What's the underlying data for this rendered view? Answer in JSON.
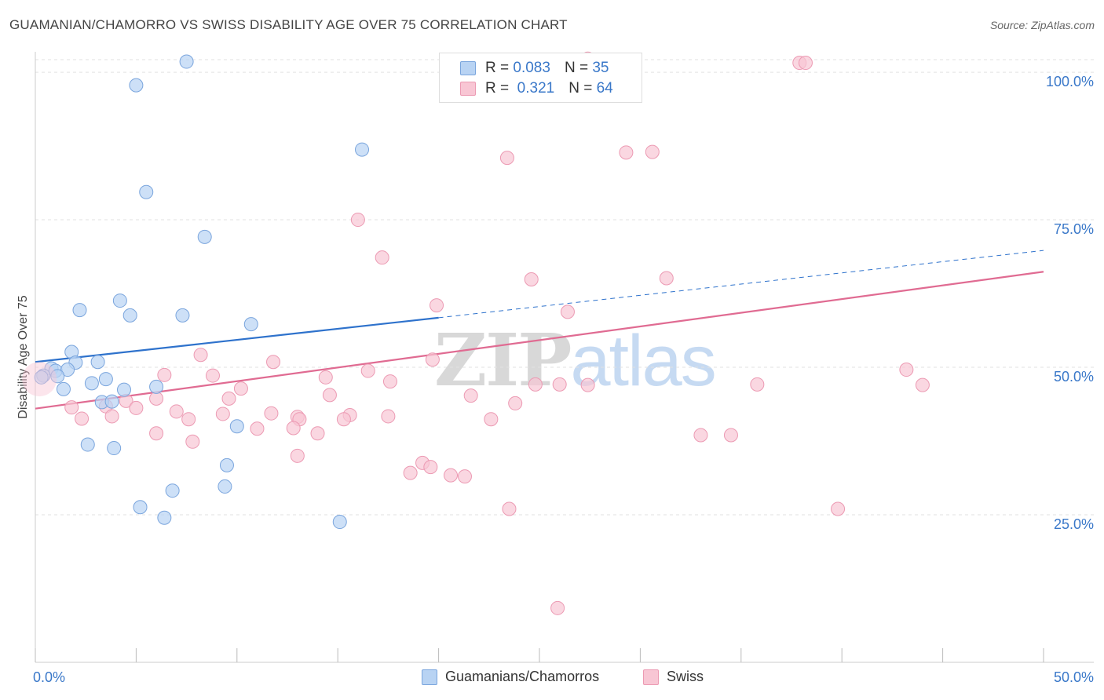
{
  "title": "GUAMANIAN/CHAMORRO VS SWISS DISABILITY AGE OVER 75 CORRELATION CHART",
  "source": "Source: ZipAtlas.com",
  "watermark": {
    "zip": "ZIP",
    "atlas": "atlas"
  },
  "legend_top": [
    {
      "r_label": "R =",
      "r_value": "0.083",
      "n_label": "N =",
      "n_value": "35"
    },
    {
      "r_label": "R =",
      "r_value": "0.321",
      "n_label": "N =",
      "n_value": "64"
    }
  ],
  "legend_bottom": [
    {
      "label": "Guamanians/Chamorros"
    },
    {
      "label": "Swiss"
    }
  ],
  "colors": {
    "blue_fill": "#b8d3f3",
    "blue_stroke": "#7aa5dd",
    "blue_line": "#2e72cc",
    "pink_fill": "#f8c6d4",
    "pink_stroke": "#ec9ab3",
    "pink_line": "#e06b92",
    "tick_label": "#3a78c9",
    "grid": "#e2e2e2"
  },
  "chart_data": {
    "type": "scatter",
    "title": "GUAMANIAN/CHAMORRO VS SWISS DISABILITY AGE OVER 75 CORRELATION CHART",
    "xlabel": "",
    "ylabel": "Disability Age Over 75",
    "xlim": [
      0,
      50
    ],
    "ylim": [
      0,
      104
    ],
    "x_tick_labels": [
      {
        "value": 0,
        "label": "0.0%"
      },
      {
        "value": 50,
        "label": "50.0%"
      }
    ],
    "y_tick_labels": [
      {
        "value": 25,
        "label": "25.0%"
      },
      {
        "value": 50,
        "label": "50.0%"
      },
      {
        "value": 75,
        "label": "75.0%"
      },
      {
        "value": 100,
        "label": "100.0%"
      }
    ],
    "x_minor_ticks": [
      0,
      5,
      10,
      15,
      20,
      25,
      30,
      35,
      40,
      45,
      50
    ],
    "grid": true,
    "legend_position": "top-center",
    "series": [
      {
        "name": "Guamanians/Chamorros",
        "color": "#b8d3f3",
        "trend": {
          "x": [
            0,
            20
          ],
          "y": [
            50.9,
            58.4
          ],
          "extended_to": [
            50,
            69.8
          ]
        },
        "points": [
          [
            7.5,
            101.8
          ],
          [
            5.0,
            97.8
          ],
          [
            16.2,
            86.9
          ],
          [
            5.5,
            79.7
          ],
          [
            8.4,
            72.1
          ],
          [
            4.2,
            61.3
          ],
          [
            2.2,
            59.7
          ],
          [
            4.7,
            58.8
          ],
          [
            7.3,
            58.8
          ],
          [
            10.7,
            57.3
          ],
          [
            1.8,
            52.6
          ],
          [
            2.0,
            50.8
          ],
          [
            3.1,
            50.9
          ],
          [
            0.8,
            49.8
          ],
          [
            1.0,
            49.4
          ],
          [
            1.6,
            49.6
          ],
          [
            1.1,
            48.5
          ],
          [
            0.4,
            48.6
          ],
          [
            0.3,
            48.3
          ],
          [
            2.8,
            47.3
          ],
          [
            3.5,
            48.0
          ],
          [
            1.4,
            46.3
          ],
          [
            6.0,
            46.7
          ],
          [
            4.4,
            46.2
          ],
          [
            3.3,
            44.1
          ],
          [
            3.8,
            44.2
          ],
          [
            10.0,
            40.0
          ],
          [
            2.6,
            36.9
          ],
          [
            3.9,
            36.3
          ],
          [
            9.5,
            33.4
          ],
          [
            9.4,
            29.8
          ],
          [
            6.8,
            29.1
          ],
          [
            5.2,
            26.3
          ],
          [
            6.4,
            24.5
          ],
          [
            15.1,
            23.8
          ]
        ]
      },
      {
        "name": "Swiss",
        "color": "#f8c6d4",
        "trend": {
          "x": [
            0,
            50
          ],
          "y": [
            43.0,
            66.2
          ]
        },
        "points": [
          [
            27.4,
            102.3
          ],
          [
            37.9,
            101.6
          ],
          [
            38.2,
            101.6
          ],
          [
            30.6,
            86.5
          ],
          [
            29.3,
            86.4
          ],
          [
            23.4,
            85.5
          ],
          [
            16.0,
            75.0
          ],
          [
            17.2,
            68.6
          ],
          [
            31.3,
            65.1
          ],
          [
            24.6,
            64.9
          ],
          [
            19.9,
            60.5
          ],
          [
            26.4,
            59.4
          ],
          [
            8.2,
            52.1
          ],
          [
            11.8,
            50.9
          ],
          [
            19.7,
            51.3
          ],
          [
            16.5,
            49.4
          ],
          [
            6.4,
            48.7
          ],
          [
            8.8,
            48.6
          ],
          [
            14.4,
            48.3
          ],
          [
            43.2,
            49.6
          ],
          [
            17.6,
            47.6
          ],
          [
            24.8,
            47.1
          ],
          [
            26.0,
            47.1
          ],
          [
            27.4,
            47.0
          ],
          [
            35.8,
            47.1
          ],
          [
            44.0,
            47.0
          ],
          [
            10.2,
            46.4
          ],
          [
            14.6,
            45.3
          ],
          [
            21.6,
            45.2
          ],
          [
            9.6,
            44.7
          ],
          [
            4.5,
            44.3
          ],
          [
            6.0,
            44.7
          ],
          [
            23.8,
            43.9
          ],
          [
            1.8,
            43.2
          ],
          [
            3.5,
            43.4
          ],
          [
            5.0,
            43.1
          ],
          [
            7.0,
            42.5
          ],
          [
            9.3,
            42.1
          ],
          [
            11.7,
            42.2
          ],
          [
            13.0,
            41.6
          ],
          [
            15.6,
            41.9
          ],
          [
            17.5,
            41.7
          ],
          [
            2.3,
            41.3
          ],
          [
            3.8,
            41.7
          ],
          [
            7.6,
            41.2
          ],
          [
            13.1,
            41.2
          ],
          [
            15.3,
            41.2
          ],
          [
            22.6,
            41.2
          ],
          [
            11.0,
            39.6
          ],
          [
            12.8,
            39.7
          ],
          [
            14.0,
            38.8
          ],
          [
            6.0,
            38.8
          ],
          [
            33.0,
            38.5
          ],
          [
            34.5,
            38.5
          ],
          [
            7.8,
            37.4
          ],
          [
            13.0,
            35.0
          ],
          [
            19.2,
            33.8
          ],
          [
            19.6,
            33.1
          ],
          [
            18.6,
            32.1
          ],
          [
            20.6,
            31.7
          ],
          [
            21.3,
            31.5
          ],
          [
            23.5,
            26.0
          ],
          [
            39.8,
            26.0
          ],
          [
            25.9,
            9.2
          ]
        ]
      }
    ]
  }
}
